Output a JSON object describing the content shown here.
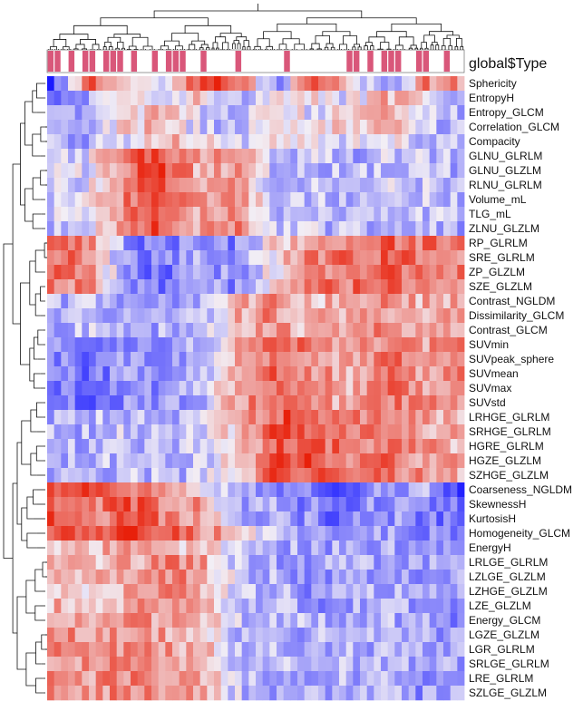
{
  "chart_data": {
    "type": "heatmap",
    "annotation": {
      "title": "global$Type",
      "colors": {
        "type_a": "#d9577a",
        "type_b": "#ffffff"
      },
      "pattern": [
        1,
        1,
        0,
        1,
        0,
        1,
        1,
        0,
        1,
        1,
        1,
        0,
        1,
        0,
        0,
        1,
        0,
        1,
        1,
        1,
        0,
        0,
        1,
        0,
        0,
        0,
        0,
        1,
        0,
        0,
        0,
        0,
        0,
        0,
        1,
        0,
        0,
        0,
        0,
        0,
        0,
        0,
        0,
        1,
        1,
        0,
        1,
        0,
        1,
        1,
        1,
        0,
        0,
        1,
        1,
        0,
        0,
        1,
        0,
        0
      ]
    },
    "palette": {
      "low": "#1a1aff",
      "mid": "#f2eef5",
      "high": "#e8200a"
    },
    "columns": 60,
    "row_labels": [
      "Sphericity",
      "EntropyH",
      "Entropy_GLCM",
      "Correlation_GLCM",
      "Compacity",
      "GLNU_GLRLM",
      "GLNU_GLZLM",
      "RLNU_GLRLM",
      "Volume_mL",
      "TLG_mL",
      "ZLNU_GLZLM",
      "RP_GLRLM",
      "SRE_GLRLM",
      "ZP_GLZLM",
      "SZE_GLZLM",
      "Contrast_NGLDM",
      "Dissimilarity_GLCM",
      "Contrast_GLCM",
      "SUVmin",
      "SUVpeak_sphere",
      "SUVmean",
      "SUVmax",
      "SUVstd",
      "LRHGE_GLRLM",
      "SRHGE_GLRLM",
      "HGRE_GLRLM",
      "HGZE_GLZLM",
      "SZHGE_GLZLM",
      "Coarseness_NGLDM",
      "SkewnessH",
      "KurtosisH",
      "Homogeneity_GLCM",
      "EnergyH",
      "LRLGE_GLRLM",
      "LZLGE_GLZLM",
      "LZHGE_GLZLM",
      "LZE_GLZLM",
      "Energy_GLCM",
      "LGZE_GLZLM",
      "LGR_GLRLM",
      "SRLGE_GLRLM",
      "LRE_GLRLM",
      "SZLGE_GLZLM"
    ],
    "row_groups": [
      {
        "rows": [
          0
        ],
        "levels": [
          -0.9,
          0.7,
          0.4,
          -0.3,
          0.9,
          0.8,
          -0.5,
          0.6,
          0.3,
          -0.6,
          0.5,
          0.4
        ]
      },
      {
        "rows": [
          1
        ],
        "levels": [
          -0.5,
          -0.4,
          0.2,
          -0.2,
          0.3,
          -0.3,
          0.2,
          0.1,
          -0.1,
          0.3,
          0.2,
          -0.3
        ]
      },
      {
        "rows": [
          2,
          3
        ],
        "levels": [
          -0.4,
          -0.3,
          0.1,
          0.3,
          -0.2,
          -0.3,
          0.2,
          -0.1,
          0.2,
          0.3,
          -0.2,
          -0.3
        ]
      },
      {
        "rows": [
          4
        ],
        "levels": [
          -0.3,
          -0.3,
          -0.2,
          0.3,
          0.2,
          -0.2,
          0.1,
          0.1,
          -0.1,
          0.0,
          -0.2,
          -0.2
        ]
      },
      {
        "rows": [
          5,
          6,
          7,
          8,
          9,
          10
        ],
        "levels": [
          -0.2,
          -0.1,
          0.6,
          0.8,
          0.3,
          0.5,
          -0.2,
          -0.2,
          -0.3,
          -0.2,
          -0.2,
          -0.3
        ]
      },
      {
        "rows": [
          11,
          12,
          13,
          14
        ],
        "levels": [
          0.6,
          0.5,
          -0.4,
          -0.6,
          -0.3,
          -0.5,
          0.1,
          0.5,
          0.6,
          0.7,
          0.6,
          0.5
        ]
      },
      {
        "rows": [
          15,
          16,
          17
        ],
        "levels": [
          -0.3,
          -0.2,
          -0.4,
          -0.3,
          -0.3,
          0.3,
          0.5,
          0.2,
          0.4,
          0.5,
          0.3,
          0.4
        ]
      },
      {
        "rows": [
          18,
          19,
          20,
          21,
          22
        ],
        "levels": [
          -0.5,
          -0.6,
          -0.4,
          -0.5,
          -0.3,
          0.4,
          0.7,
          0.5,
          0.3,
          0.6,
          0.4,
          0.5
        ]
      },
      {
        "rows": [
          23,
          24,
          25,
          26,
          27
        ],
        "levels": [
          -0.3,
          -0.3,
          -0.2,
          -0.3,
          -0.2,
          0.2,
          0.7,
          0.8,
          0.5,
          0.6,
          0.4,
          0.3
        ]
      },
      {
        "rows": [
          28
        ],
        "levels": [
          0.9,
          0.8,
          0.6,
          0.3,
          0.2,
          -0.4,
          -0.6,
          -0.5,
          -0.7,
          -0.4,
          -0.3,
          -0.8
        ]
      },
      {
        "rows": [
          29,
          30
        ],
        "levels": [
          0.8,
          0.5,
          0.7,
          0.6,
          0.4,
          -0.4,
          -0.3,
          -0.5,
          -0.6,
          -0.4,
          -0.5,
          -0.6
        ]
      },
      {
        "rows": [
          31
        ],
        "levels": [
          0.7,
          0.6,
          0.8,
          0.7,
          0.5,
          0.3,
          -0.3,
          -0.2,
          -0.4,
          -0.3,
          -0.4,
          -0.6
        ]
      },
      {
        "rows": [
          32
        ],
        "levels": [
          0.3,
          0.2,
          0.4,
          0.3,
          0.2,
          -0.2,
          -0.3,
          -0.3,
          -0.4,
          -0.3,
          -0.4,
          -0.5
        ]
      },
      {
        "rows": [
          33,
          34,
          35,
          36
        ],
        "levels": [
          0.3,
          0.2,
          0.3,
          0.5,
          0.4,
          -0.2,
          -0.3,
          -0.4,
          -0.3,
          -0.3,
          -0.4,
          -0.4
        ]
      },
      {
        "rows": [
          37,
          38,
          39,
          40,
          41,
          42
        ],
        "levels": [
          0.5,
          0.4,
          0.5,
          0.4,
          0.3,
          -0.2,
          -0.3,
          -0.3,
          -0.3,
          -0.3,
          -0.4,
          -0.4
        ]
      }
    ]
  }
}
